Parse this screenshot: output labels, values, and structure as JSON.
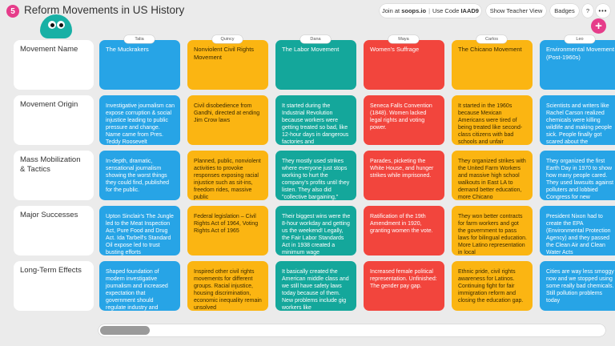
{
  "app": {
    "badge": "5",
    "title": "Reform Movements in US History"
  },
  "header": {
    "join_prefix": "Join at",
    "join_site": "soops.io",
    "join_code_label": "Use Code",
    "join_code": "IAAD9",
    "teacher_view": "Show Teacher View",
    "badges": "Badges",
    "help": "?",
    "more": "•••"
  },
  "add_button": "+",
  "rows": [
    {
      "label": "Movement Name"
    },
    {
      "label": "Movement Origin"
    },
    {
      "label": "Mass Mobilization & Tactics"
    },
    {
      "label": "Major Successes"
    },
    {
      "label": "Long-Term Effects"
    }
  ],
  "columns": [
    {
      "student": "Talia",
      "color": "blue",
      "cells": [
        "The Muckrakers",
        "Investigative journalism can expose corruption & social injustice leading to public pressure and change. Name came from Pres. Teddy Roosevelt",
        "In-depth, dramatic, sensational journalism showing the worst things they could find, published for the public.",
        "Upton Sinclair's The Jungle led to the Meat Inspection Act, Pure Food and Drug Act. Ida Tarbell's Standard Oil expose led to trust busting efforts",
        "Shaped foundation of modern investigative journalism and increased expectation that government should regulate industry and"
      ]
    },
    {
      "student": "Quincy",
      "color": "yellow",
      "cells": [
        "Nonviolent Civil Rights Movement",
        "Civil disobedience from Gandhi, directed at ending Jim Crow laws",
        "Planned, public, nonviolent activities to provoke responses exposing racial injustice such as sit-ins, freedom rides, massive public",
        "Federal legislation – Civil Rights Act of 1964, Voting Rights Act of 1965",
        "Inspired other civil rights movements for different groups. Racial injustice, housing discrimination, economic inequality remain unsolved"
      ]
    },
    {
      "student": "Dana",
      "color": "teal",
      "cells": [
        "The Labor Movement",
        "It started during the Industrial Revolution because workers were getting treated so bad, like 12-hour days in dangerous factories and",
        "They mostly used strikes where everyone just stops working to hurt the company's profits until they listen. They also did \"collective bargaining,\"",
        "Their biggest wins were the 8-hour workday and getting us the weekend! Legally, the Fair Labor Standards Act in 1938 created a minimum wage",
        "It basically created the American middle class and we still have safety laws today because of them. New problems include gig workers like"
      ]
    },
    {
      "student": "Maya",
      "color": "red",
      "cells": [
        "Women's Suffrage",
        "Seneca Falls Convention (1848). Women lacked legal rights and voting power.",
        "Parades, picketing the White House, and hunger strikes while imprisoned.",
        "Ratification of the 19th Amendment in 1920, granting women the vote.",
        "Increased female political representation. Unfinished: The gender pay gap."
      ]
    },
    {
      "student": "Carlos",
      "color": "yellow",
      "cells": [
        "The Chicano Movement",
        "It started in the 1960s because Mexican Americans were tired of being treated like second-class citizens with bad schools and unfair",
        "They organized strikes with the United Farm Workers and massive high school walkouts in East LA to demand better education, more Chicano",
        "They won better contracts for farm workers and got the government to pass laws for bilingual education. More Latino representation in local",
        "Ethnic pride, civil rights awareness for Latinos. Continuing fight for fair immigration reform and closing the education gap."
      ]
    },
    {
      "student": "Leo",
      "color": "blue",
      "cells": [
        "Environmental Movement (Post-1960s)",
        "Scientists and writers like Rachel Carson realized chemicals were killing wildlife and making people sick. People finally got scared about the",
        "They organized the first Earth Day in 1970 to show how many people cared. They used lawsuits against polluters and lobbied Congress for new",
        "President Nixon had to create the EPA (Environmental Protection Agency) and they passed the Clean Air and Clean Water Acts",
        "Cities are way less smoggy now and we stopped using some really bad chemicals. Still pollution problems today"
      ]
    }
  ]
}
